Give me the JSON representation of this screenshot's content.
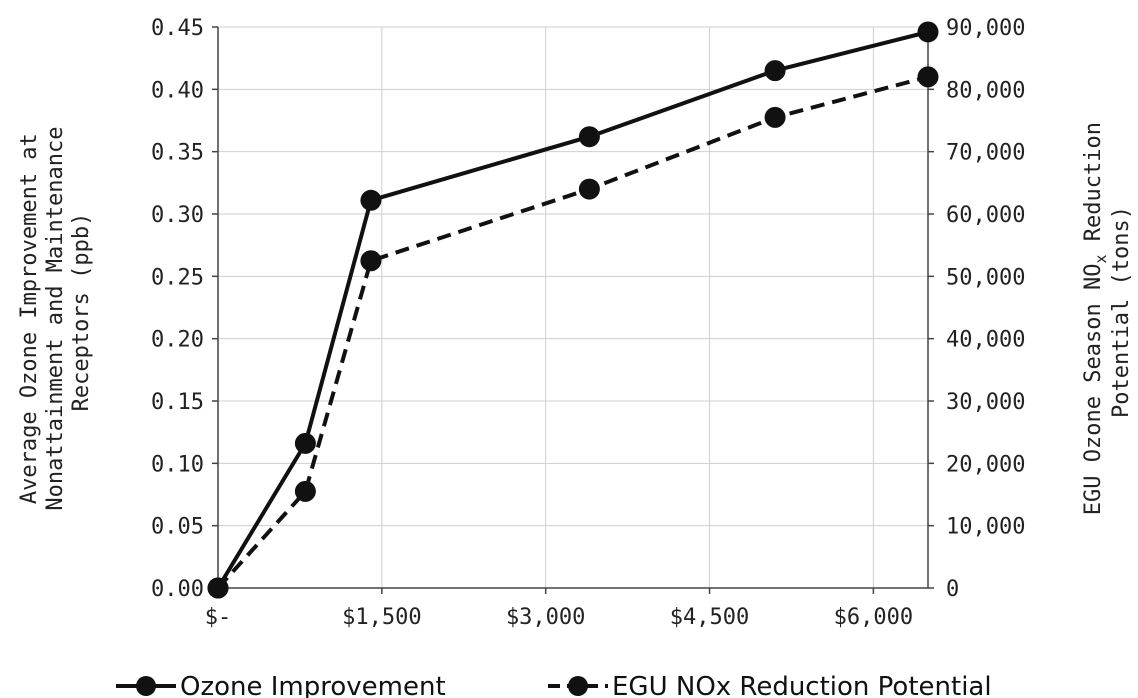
{
  "chart_data": {
    "type": "line",
    "x_tick_labels": [
      "$-",
      "$1,500",
      "$3,000",
      "$4,500",
      "$6,000"
    ],
    "x_ticks": [
      0,
      1500,
      3000,
      4500,
      6000
    ],
    "xlim": [
      0,
      6500
    ],
    "y_left": {
      "label_line1": "Average Ozone Improvement at",
      "label_line2": "Nonattainment and Maintenance",
      "label_line3": "Receptors (ppb)",
      "tick_labels": [
        "0.00",
        "0.05",
        "0.10",
        "0.15",
        "0.20",
        "0.25",
        "0.30",
        "0.35",
        "0.40",
        "0.45"
      ],
      "ticks": [
        0,
        0.05,
        0.1,
        0.15,
        0.2,
        0.25,
        0.3,
        0.35,
        0.4,
        0.45
      ],
      "ylim": [
        0,
        0.45
      ]
    },
    "y_right": {
      "label_line1": "EGU Ozone Season NO",
      "label_sub": "x",
      "label_line1_end": " Reduction",
      "label_line2": "Potential (tons)",
      "tick_labels": [
        "0",
        "10,000",
        "20,000",
        "30,000",
        "40,000",
        "50,000",
        "60,000",
        "70,000",
        "80,000",
        "90,000"
      ],
      "ticks": [
        0,
        10000,
        20000,
        30000,
        40000,
        50000,
        60000,
        70000,
        80000,
        90000
      ],
      "ylim": [
        0,
        90000
      ]
    },
    "grid": true,
    "legend_position": "bottom",
    "series": [
      {
        "name": "Ozone Improvement",
        "axis": "left",
        "style": "solid",
        "color": "#111111",
        "x": [
          0,
          800,
          1400,
          3400,
          5100,
          6500
        ],
        "y": [
          0.0,
          0.116,
          0.311,
          0.362,
          0.415,
          0.446
        ]
      },
      {
        "name": "EGU NOx Reduction Potential",
        "axis": "right",
        "style": "dashed",
        "color": "#111111",
        "x": [
          0,
          800,
          1400,
          3400,
          5100,
          6500
        ],
        "y": [
          0,
          15500,
          52500,
          64000,
          75500,
          82000
        ]
      }
    ]
  }
}
